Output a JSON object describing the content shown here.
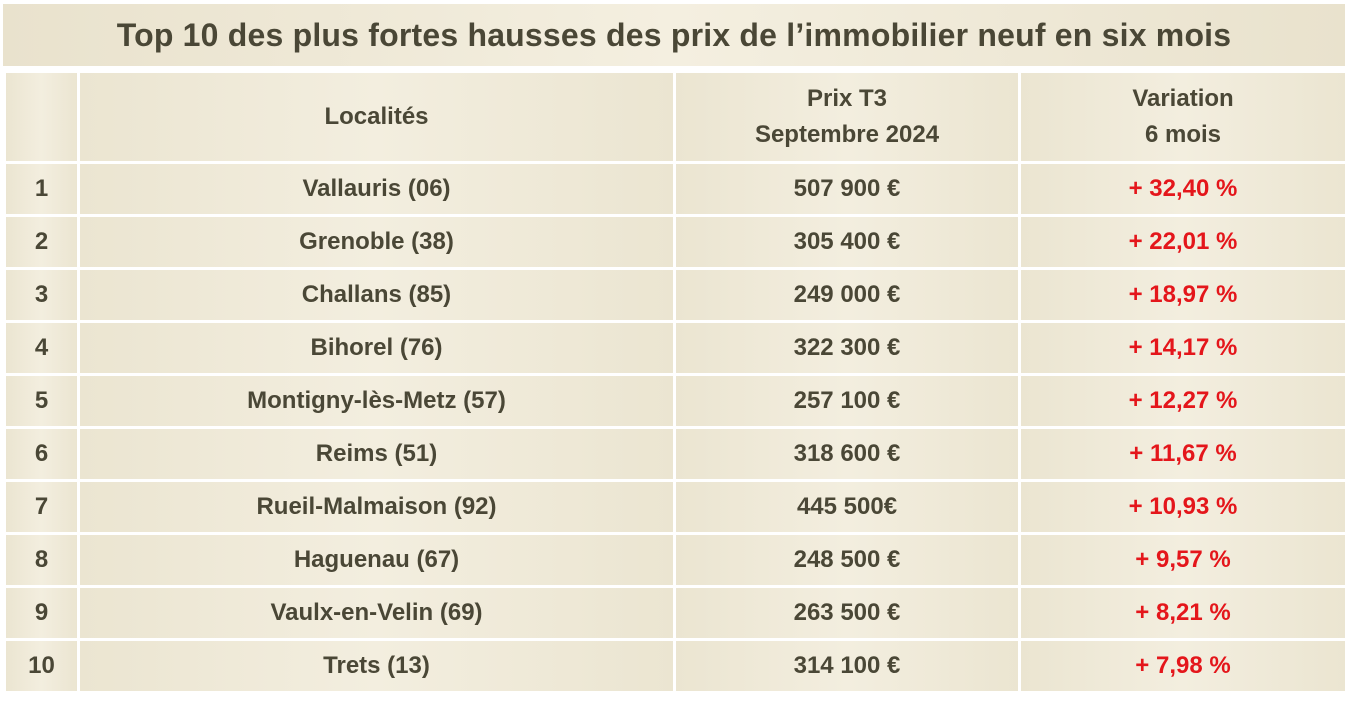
{
  "title": "Top 10 des plus fortes hausses des prix de l’immobilier neuf en six mois",
  "colors": {
    "background": "#ebe5d1",
    "text": "#4a4736",
    "variation": "#e4161b"
  },
  "headers": {
    "rank": "",
    "locality": "Localités",
    "price_line1": "Prix T3",
    "price_line2": "Septembre 2024",
    "variation_line1": "Variation",
    "variation_line2": "6 mois"
  },
  "rows": [
    {
      "rank": "1",
      "locality": "Vallauris (06)",
      "price": "507 900 €",
      "variation": "+ 32,40 %"
    },
    {
      "rank": "2",
      "locality": "Grenoble (38)",
      "price": "305 400 €",
      "variation": "+ 22,01 %"
    },
    {
      "rank": "3",
      "locality": "Challans (85)",
      "price": "249 000 €",
      "variation": "+ 18,97 %"
    },
    {
      "rank": "4",
      "locality": "Bihorel (76)",
      "price": "322 300 €",
      "variation": "+ 14,17 %"
    },
    {
      "rank": "5",
      "locality": "Montigny-lès-Metz (57)",
      "price": "257 100 €",
      "variation": "+ 12,27 %"
    },
    {
      "rank": "6",
      "locality": "Reims (51)",
      "price": "318 600 €",
      "variation": "+ 11,67 %"
    },
    {
      "rank": "7",
      "locality": "Rueil-Malmaison (92)",
      "price": "445 500€",
      "variation": "+ 10,93 %"
    },
    {
      "rank": "8",
      "locality": "Haguenau (67)",
      "price": "248 500 €",
      "variation": "+ 9,57 %"
    },
    {
      "rank": "9",
      "locality": "Vaulx-en-Velin (69)",
      "price": "263 500 €",
      "variation": "+ 8,21 %"
    },
    {
      "rank": "10",
      "locality": "Trets (13)",
      "price": "314 100 €",
      "variation": "+ 7,98 %"
    }
  ]
}
